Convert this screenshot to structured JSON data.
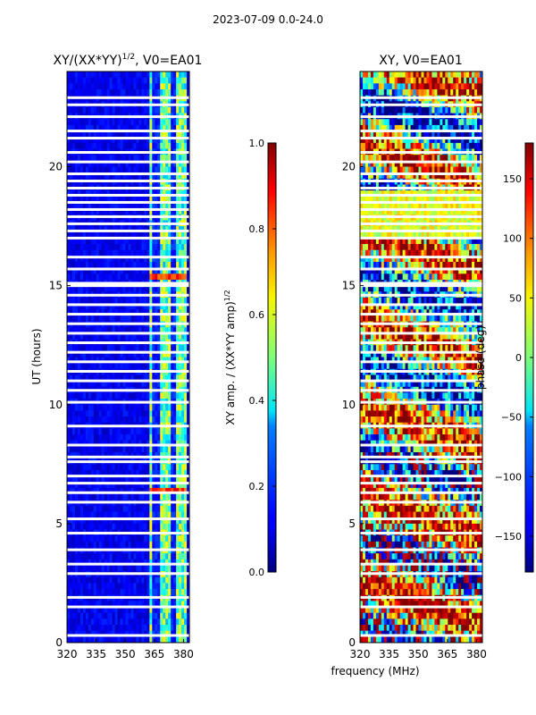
{
  "figure": {
    "suptitle": "2023-07-09 0.0-24.0",
    "shared_xlabel": "frequency (MHz)"
  },
  "chart_data": [
    {
      "type": "heatmap",
      "title_main": "XY/(XX*YY)",
      "title_sup": "1/2",
      "title_rest": ", V0=EA01",
      "ylabel": "UT (hours)",
      "xlim": [
        320,
        383
      ],
      "ylim": [
        0,
        24
      ],
      "xticks": [
        320,
        335,
        350,
        365,
        380
      ],
      "yticks": [
        0,
        5,
        10,
        15,
        20
      ],
      "colorbar": {
        "label": "XY amp. / (XX*YY amp)",
        "label_sup": "1/2",
        "range": [
          0.0,
          1.0
        ],
        "ticks": [
          "0.0",
          "0.2",
          "0.4",
          "0.6",
          "0.8",
          "1.0"
        ],
        "tick_values": [
          0.0,
          0.2,
          0.4,
          0.6,
          0.8,
          1.0
        ]
      },
      "gaps_ut": [
        0.3,
        1.5,
        1.9,
        2.9,
        3.3,
        3.9,
        4.6,
        5.2,
        5.9,
        6.3,
        6.7,
        7.0,
        7.6,
        7.8,
        8.3,
        9.1,
        10.1,
        10.6,
        11.0,
        11.4,
        11.8,
        12.2,
        12.6,
        13.0,
        13.4,
        13.8,
        14.2,
        14.6,
        15.0,
        15.1,
        15.7,
        16.2,
        17.0,
        17.3,
        17.6,
        17.9,
        18.2,
        18.5,
        18.8,
        19.1,
        19.4,
        19.7,
        20.2,
        20.6,
        21.2,
        21.5,
        22.1,
        22.6,
        22.9
      ],
      "bright_band_mhz": [
        363,
        382
      ],
      "high_amp_hours": [
        6.4,
        15.4
      ]
    },
    {
      "type": "heatmap",
      "title_main": "XY, V0=EA01",
      "ylabel": "",
      "xlim": [
        320,
        383
      ],
      "ylim": [
        0,
        24
      ],
      "xticks": [
        320,
        335,
        350,
        365,
        380
      ],
      "yticks": [
        0,
        5,
        10,
        15,
        20
      ],
      "colorbar": {
        "label": "phase (deg)",
        "range": [
          -180,
          180
        ],
        "ticks": [
          "−150",
          "−100",
          "−50",
          "0",
          "50",
          "100",
          "150"
        ],
        "tick_values": [
          -150,
          -100,
          -50,
          0,
          50,
          100,
          150
        ]
      },
      "gaps_ut": [
        0.3,
        1.5,
        1.9,
        2.9,
        3.3,
        3.9,
        4.6,
        5.2,
        5.9,
        6.3,
        6.7,
        7.0,
        7.6,
        7.8,
        8.3,
        9.1,
        10.1,
        10.6,
        11.0,
        11.4,
        11.8,
        12.2,
        12.6,
        13.0,
        13.4,
        13.8,
        14.2,
        14.6,
        15.0,
        15.1,
        15.7,
        16.2,
        17.0,
        17.3,
        17.6,
        17.9,
        18.2,
        18.5,
        18.8,
        19.1,
        19.4,
        19.7,
        20.2,
        20.6,
        21.2,
        21.5,
        22.1,
        22.6,
        22.9
      ]
    }
  ]
}
